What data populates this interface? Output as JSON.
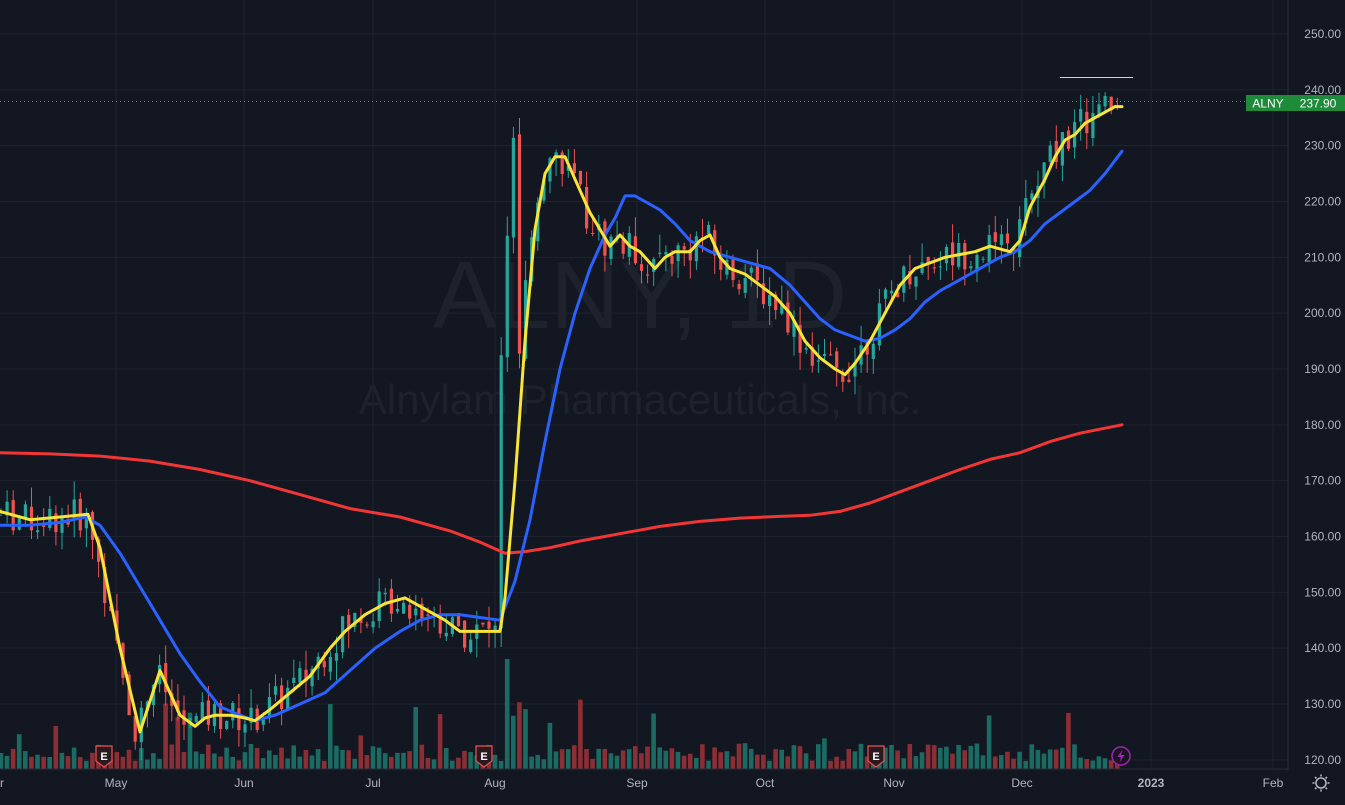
{
  "watermark": {
    "ticker": "ALNY, 1D",
    "company": "Alnylam Pharmaceuticals, Inc."
  },
  "price_label": {
    "symbol": "ALNY",
    "price": "237.90"
  },
  "earnings_marker": "E",
  "colors": {
    "background": "#131722",
    "grid": "#1f2330",
    "up": "#26a69a",
    "down": "#ef5350",
    "ema_short": "#f9e537",
    "ema_mid": "#2962ff",
    "sma_long": "#f23636",
    "volume_up": "#1b6b63",
    "volume_down": "#8c2f35",
    "price_badge": "#1e8b3a"
  },
  "icons": {
    "lightning": "lightning-icon",
    "settings": "gear-icon"
  },
  "chart_data": {
    "type": "line",
    "title": "ALNY, 1D",
    "subtitle": "Alnylam Pharmaceuticals, Inc.",
    "ylim": [
      118,
      254
    ],
    "y_ticks": [
      "250.00",
      "240.00",
      "230.00",
      "220.00",
      "210.00",
      "200.00",
      "190.00",
      "180.00",
      "170.00",
      "160.00",
      "150.00",
      "140.00",
      "130.00",
      "120.00"
    ],
    "x_ticks": [
      "r",
      "May",
      "Jun",
      "Jul",
      "Aug",
      "Sep",
      "Oct",
      "Nov",
      "Dec",
      "2023",
      "Feb"
    ],
    "last_price": 237.9,
    "resistance_level": 242.2,
    "earnings_dates": [
      "2022-04-28",
      "2022-08-04",
      "2022-11-03"
    ],
    "series": [
      {
        "key": "ema_short",
        "points": [
          [
            0,
            164.5
          ],
          [
            30,
            163
          ],
          [
            60,
            163.5
          ],
          [
            88,
            164
          ],
          [
            100,
            158
          ],
          [
            120,
            140
          ],
          [
            140,
            125
          ],
          [
            160,
            136
          ],
          [
            180,
            128
          ],
          [
            195,
            126
          ],
          [
            205,
            127.5
          ],
          [
            215,
            128
          ],
          [
            230,
            128
          ],
          [
            245,
            127.5
          ],
          [
            255,
            127
          ],
          [
            270,
            129
          ],
          [
            290,
            132
          ],
          [
            310,
            135
          ],
          [
            330,
            140
          ],
          [
            345,
            143
          ],
          [
            365,
            146
          ],
          [
            385,
            148
          ],
          [
            405,
            149
          ],
          [
            425,
            147
          ],
          [
            445,
            145
          ],
          [
            460,
            143
          ],
          [
            475,
            143
          ],
          [
            490,
            143
          ],
          [
            500,
            143
          ],
          [
            505,
            149
          ],
          [
            515,
            170
          ],
          [
            525,
            195
          ],
          [
            535,
            215
          ],
          [
            545,
            225
          ],
          [
            555,
            228
          ],
          [
            565,
            228
          ],
          [
            575,
            224
          ],
          [
            590,
            218
          ],
          [
            600,
            215
          ],
          [
            610,
            212
          ],
          [
            620,
            214
          ],
          [
            630,
            212
          ],
          [
            640,
            211
          ],
          [
            655,
            208
          ],
          [
            665,
            210
          ],
          [
            675,
            211
          ],
          [
            690,
            211
          ],
          [
            700,
            213
          ],
          [
            710,
            214
          ],
          [
            720,
            210
          ],
          [
            730,
            208
          ],
          [
            745,
            207
          ],
          [
            760,
            205
          ],
          [
            775,
            203
          ],
          [
            790,
            200
          ],
          [
            805,
            195
          ],
          [
            820,
            192
          ],
          [
            835,
            190
          ],
          [
            845,
            189
          ],
          [
            855,
            191
          ],
          [
            870,
            195
          ],
          [
            885,
            200
          ],
          [
            900,
            205
          ],
          [
            915,
            208
          ],
          [
            930,
            209
          ],
          [
            945,
            210
          ],
          [
            960,
            210.5
          ],
          [
            975,
            211
          ],
          [
            990,
            212
          ],
          [
            1010,
            211
          ],
          [
            1020,
            213
          ],
          [
            1030,
            219
          ],
          [
            1045,
            224
          ],
          [
            1055,
            228
          ],
          [
            1065,
            231
          ],
          [
            1075,
            232
          ],
          [
            1085,
            234
          ],
          [
            1095,
            235
          ],
          [
            1105,
            236
          ],
          [
            1115,
            237
          ],
          [
            1122,
            237
          ]
        ]
      },
      {
        "key": "ema_mid",
        "points": [
          [
            0,
            162
          ],
          [
            30,
            162
          ],
          [
            60,
            162.5
          ],
          [
            85,
            163.5
          ],
          [
            100,
            162
          ],
          [
            120,
            157
          ],
          [
            140,
            151
          ],
          [
            160,
            145
          ],
          [
            180,
            139
          ],
          [
            200,
            134
          ],
          [
            220,
            129.5
          ],
          [
            240,
            128
          ],
          [
            255,
            127
          ],
          [
            275,
            128
          ],
          [
            300,
            130
          ],
          [
            325,
            132
          ],
          [
            350,
            136
          ],
          [
            375,
            140
          ],
          [
            400,
            143
          ],
          [
            420,
            145
          ],
          [
            440,
            146
          ],
          [
            460,
            146
          ],
          [
            480,
            145.5
          ],
          [
            500,
            145
          ],
          [
            515,
            152
          ],
          [
            530,
            163
          ],
          [
            545,
            177
          ],
          [
            560,
            190
          ],
          [
            575,
            200
          ],
          [
            590,
            208
          ],
          [
            605,
            214
          ],
          [
            615,
            217
          ],
          [
            625,
            221
          ],
          [
            635,
            221
          ],
          [
            645,
            220
          ],
          [
            660,
            218.5
          ],
          [
            675,
            216
          ],
          [
            690,
            213
          ],
          [
            710,
            211
          ],
          [
            730,
            210
          ],
          [
            750,
            209
          ],
          [
            770,
            208
          ],
          [
            790,
            205
          ],
          [
            805,
            202
          ],
          [
            820,
            199
          ],
          [
            835,
            197
          ],
          [
            850,
            196
          ],
          [
            865,
            195
          ],
          [
            880,
            195.5
          ],
          [
            895,
            197
          ],
          [
            910,
            199
          ],
          [
            925,
            202
          ],
          [
            940,
            204
          ],
          [
            960,
            206
          ],
          [
            980,
            208
          ],
          [
            1000,
            210
          ],
          [
            1015,
            211
          ],
          [
            1030,
            213
          ],
          [
            1045,
            216
          ],
          [
            1060,
            218
          ],
          [
            1075,
            220
          ],
          [
            1090,
            222
          ],
          [
            1105,
            225
          ],
          [
            1122,
            229
          ]
        ]
      },
      {
        "key": "sma_long",
        "points": [
          [
            0,
            175
          ],
          [
            50,
            174.8
          ],
          [
            100,
            174.4
          ],
          [
            150,
            173.5
          ],
          [
            200,
            172
          ],
          [
            250,
            170
          ],
          [
            300,
            167.5
          ],
          [
            350,
            165
          ],
          [
            400,
            163.5
          ],
          [
            450,
            161
          ],
          [
            480,
            159
          ],
          [
            505,
            157
          ],
          [
            525,
            157.3
          ],
          [
            550,
            158
          ],
          [
            580,
            159.2
          ],
          [
            620,
            160.5
          ],
          [
            660,
            161.8
          ],
          [
            700,
            162.7
          ],
          [
            740,
            163.3
          ],
          [
            780,
            163.6
          ],
          [
            810,
            163.8
          ],
          [
            840,
            164.5
          ],
          [
            870,
            166
          ],
          [
            900,
            168
          ],
          [
            930,
            170
          ],
          [
            960,
            172
          ],
          [
            990,
            173.8
          ],
          [
            1020,
            175
          ],
          [
            1050,
            177
          ],
          [
            1080,
            178.5
          ],
          [
            1122,
            180
          ]
        ]
      }
    ]
  }
}
